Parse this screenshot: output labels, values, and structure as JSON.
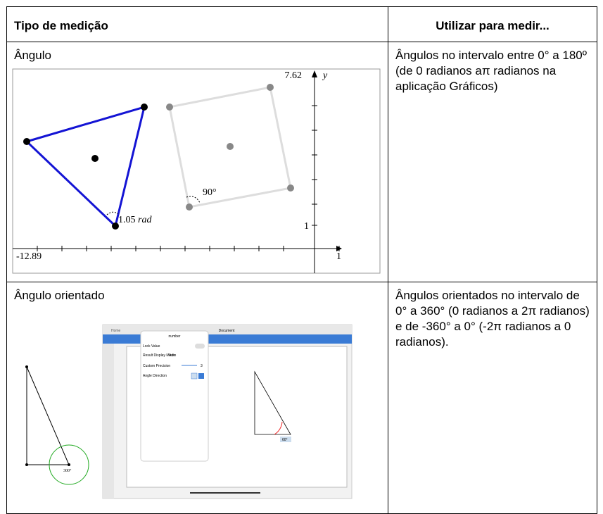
{
  "table": {
    "header": [
      "Tipo de medição",
      "Utilizar para medir..."
    ],
    "rows": [
      {
        "type": "Ângulo",
        "description": "Ângulos no intervalo entre 0° a 180º (de 0 radianos aπ radianos na aplicação Gráficos)",
        "figure": {
          "ymax": "7.62",
          "yname": "y",
          "xmin": "-12.89",
          "ytick": "1",
          "xtick": "1",
          "angle_rad": "1.05",
          "rad_unit": "rad",
          "angle_deg": "90°"
        }
      },
      {
        "type": "Ângulo orientado",
        "description": "Ângulos orientados no intervalo de 0° a 360° (0 radianos a 2π radianos) e de -360° a 0° (-2π radianos a 0 radianos).",
        "figure": {
          "left_angle": "300°",
          "home": "Home",
          "document": "Document",
          "popup_title": "number",
          "lock_value": "Lock Value",
          "result_mode": "Result Display Mode",
          "auto": "Auto",
          "precision": "Custom Precision",
          "precision_value": "3",
          "direction": "Angle Direction",
          "right_angle": "60°"
        }
      }
    ]
  }
}
